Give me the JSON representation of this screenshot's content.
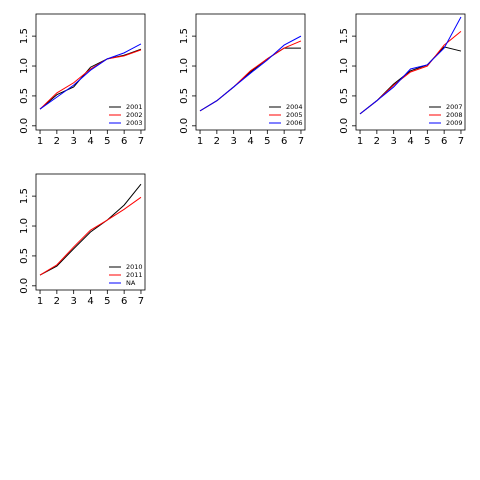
{
  "chart_data": [
    {
      "type": "line",
      "x": [
        1,
        2,
        3,
        4,
        5,
        6,
        7
      ],
      "xlim": [
        0.76,
        7.24
      ],
      "xticks": [
        1,
        2,
        3,
        4,
        5,
        6,
        7
      ],
      "ylim": [
        -0.07,
        1.87
      ],
      "yticks": [
        {
          "value": 0,
          "label": "0.0"
        },
        {
          "value": 0.5,
          "label": "0.5"
        },
        {
          "value": 1,
          "label": "1.0"
        },
        {
          "value": 1.5,
          "label": "1.5"
        }
      ],
      "legend": "bottom right",
      "series": [
        {
          "name": "2001",
          "color": "#000000",
          "values": [
            0.28,
            0.52,
            0.65,
            0.98,
            1.12,
            1.18,
            1.28
          ]
        },
        {
          "name": "2002",
          "color": "#ff0000",
          "values": [
            0.28,
            0.55,
            0.72,
            0.95,
            1.12,
            1.17,
            1.27
          ]
        },
        {
          "name": "2003",
          "color": "#0000ff",
          "values": [
            0.28,
            0.48,
            0.68,
            0.93,
            1.12,
            1.22,
            1.37
          ]
        }
      ]
    },
    {
      "type": "line",
      "x": [
        1,
        2,
        3,
        4,
        5,
        6,
        7
      ],
      "xlim": [
        0.76,
        7.24
      ],
      "xticks": [
        1,
        2,
        3,
        4,
        5,
        6,
        7
      ],
      "ylim": [
        -0.07,
        1.87
      ],
      "yticks": [
        {
          "value": 0,
          "label": "0.0"
        },
        {
          "value": 0.5,
          "label": "0.5"
        },
        {
          "value": 1,
          "label": "1.0"
        },
        {
          "value": 1.5,
          "label": "1.5"
        }
      ],
      "legend": "bottom right",
      "series": [
        {
          "name": "2004",
          "color": "#000000",
          "values": [
            0.25,
            0.42,
            0.65,
            0.9,
            1.12,
            1.3,
            1.3
          ]
        },
        {
          "name": "2005",
          "color": "#ff0000",
          "values": [
            0.25,
            0.42,
            0.65,
            0.92,
            1.12,
            1.3,
            1.42
          ]
        },
        {
          "name": "2006",
          "color": "#0000ff",
          "values": [
            0.25,
            0.42,
            0.65,
            0.88,
            1.1,
            1.35,
            1.5
          ]
        }
      ]
    },
    {
      "type": "line",
      "x": [
        1,
        2,
        3,
        4,
        5,
        6,
        7
      ],
      "xlim": [
        0.76,
        7.24
      ],
      "xticks": [
        1,
        2,
        3,
        4,
        5,
        6,
        7
      ],
      "ylim": [
        -0.07,
        1.87
      ],
      "yticks": [
        {
          "value": 0,
          "label": "0.0"
        },
        {
          "value": 0.5,
          "label": "0.5"
        },
        {
          "value": 1,
          "label": "1.0"
        },
        {
          "value": 1.5,
          "label": "1.5"
        }
      ],
      "legend": "bottom right",
      "series": [
        {
          "name": "2007",
          "color": "#000000",
          "values": [
            0.2,
            0.42,
            0.7,
            0.92,
            1.02,
            1.32,
            1.25
          ]
        },
        {
          "name": "2008",
          "color": "#ff0000",
          "values": [
            0.2,
            0.42,
            0.68,
            0.9,
            1.0,
            1.35,
            1.58
          ]
        },
        {
          "name": "2009",
          "color": "#0000ff",
          "values": [
            0.2,
            0.42,
            0.65,
            0.95,
            1.02,
            1.3,
            1.82
          ]
        }
      ]
    },
    {
      "type": "line",
      "x": [
        1,
        2,
        3,
        4,
        5,
        6,
        7
      ],
      "xlim": [
        0.76,
        7.24
      ],
      "xticks": [
        1,
        2,
        3,
        4,
        5,
        6,
        7
      ],
      "ylim": [
        -0.07,
        1.87
      ],
      "yticks": [
        {
          "value": 0,
          "label": "0.0"
        },
        {
          "value": 0.5,
          "label": "0.5"
        },
        {
          "value": 1,
          "label": "1.0"
        },
        {
          "value": 1.5,
          "label": "1.5"
        }
      ],
      "legend": "bottom right",
      "series": [
        {
          "name": "2010",
          "color": "#000000",
          "values": [
            0.18,
            0.33,
            0.62,
            0.9,
            1.1,
            1.35,
            1.7
          ]
        },
        {
          "name": "2011",
          "color": "#ff0000",
          "values": [
            0.18,
            0.35,
            0.65,
            0.93,
            1.1,
            1.28,
            1.48
          ]
        },
        {
          "name": "NA",
          "color": "#0000ff",
          "values": [
            null,
            null,
            null,
            null,
            null,
            null,
            null
          ]
        }
      ]
    }
  ]
}
